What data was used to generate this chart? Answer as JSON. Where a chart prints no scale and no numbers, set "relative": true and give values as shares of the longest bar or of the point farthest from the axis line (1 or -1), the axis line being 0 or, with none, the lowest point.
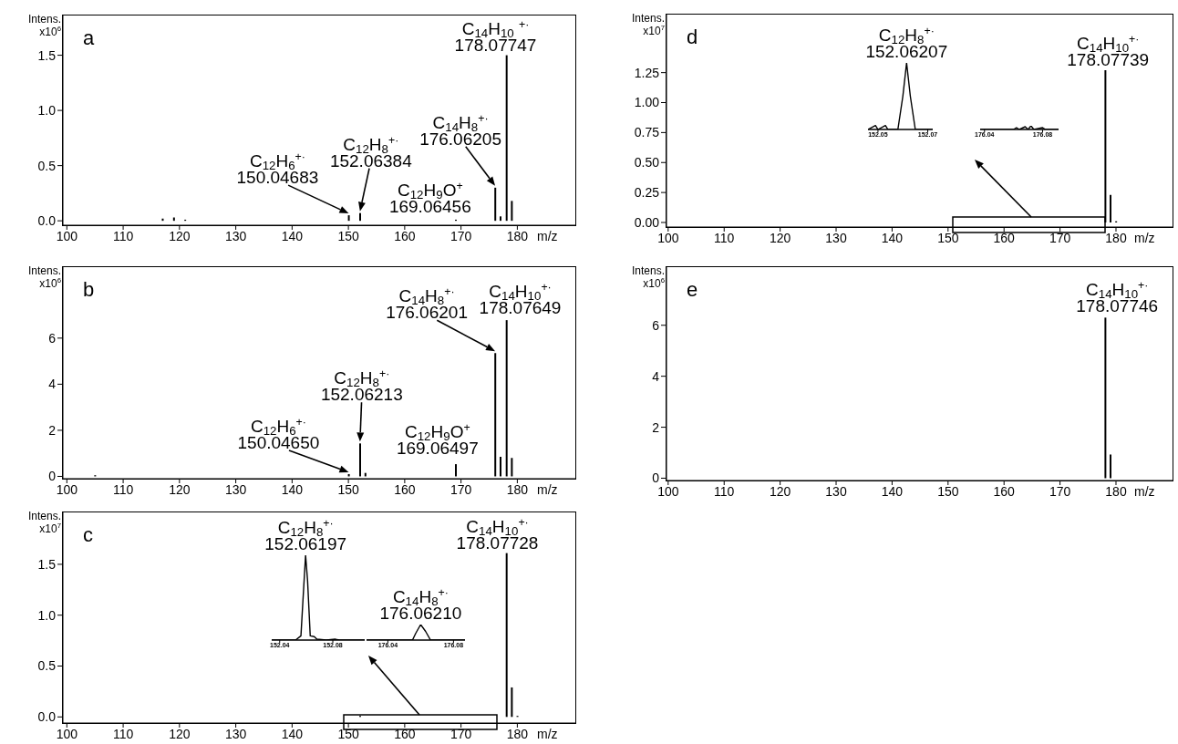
{
  "chart_data": [
    {
      "type": "bar",
      "title": "a",
      "ylabel": "Intens.\nx10$^{6}$",
      "xlabel": "m/z",
      "color": "#000000",
      "x": [
        117,
        119,
        121,
        150.05,
        152.06,
        169.06,
        176.06,
        177,
        178.08,
        179
      ],
      "values": [
        0.02,
        0.03,
        0.01,
        0.05,
        0.07,
        0.01,
        0.3,
        0.04,
        1.5,
        0.18
      ],
      "xlim": [
        99.3,
        190.3
      ],
      "xticks": [
        100,
        110,
        120,
        130,
        140,
        150,
        160,
        170,
        180
      ],
      "ylim": [
        -0.04,
        1.86
      ],
      "yticks": [
        {
          "value": 0,
          "label": "0.0"
        },
        {
          "value": 0.5,
          "label": "0.5"
        },
        {
          "value": 1,
          "label": "1.0"
        },
        {
          "value": 1.5,
          "label": "1.5"
        }
      ],
      "annotations": [
        {
          "text": "C$_{12}$H$_{6}$$^{+·}$\n150.04683",
          "x": 150.05,
          "y": 0.05
        },
        {
          "text": "C$_{12}$H$_{8}$$^{+·}$\n152.06384",
          "x": 152.06,
          "y": 0.07
        },
        {
          "text": "C$_{12}$H$_{9}$O$^{+}$\n169.06456",
          "x": 169.06,
          "y": 0.01
        },
        {
          "text": "C$_{14}$H$_{8}$$^{+·}$\n176.06205",
          "x": 176.06,
          "y": 0.3
        },
        {
          "text": "C$_{14}$H$_{10}$ $^{+·}$\n178.07747",
          "x": 178.08,
          "y": 1.5
        }
      ]
    },
    {
      "type": "bar",
      "title": "b",
      "ylabel": "Intens.\nx10$^{6}$",
      "xlabel": "m/z",
      "color": "#000000",
      "x": [
        105,
        150.05,
        152.06,
        153,
        169.06,
        176.06,
        177,
        178.08,
        179
      ],
      "values": [
        0.05,
        0.1,
        1.43,
        0.15,
        0.53,
        5.35,
        0.85,
        6.78,
        0.8
      ],
      "xlim": [
        99.3,
        190.3
      ],
      "xticks": [
        100,
        110,
        120,
        130,
        140,
        150,
        160,
        170,
        180
      ],
      "ylim": [
        -0.1,
        9.08
      ],
      "yticks": [
        0,
        2,
        4,
        6
      ],
      "annotations": [
        {
          "text": "C$_{12}$H$_{6}$$^{+·}$\n150.04650",
          "x": 150.05,
          "y": 0.1
        },
        {
          "text": "C$_{12}$H$_{8}$$^{+·}$\n152.06213",
          "x": 152.06,
          "y": 1.43
        },
        {
          "text": "C$_{12}$H$_{9}$O$^{+}$\n169.06497",
          "x": 169.06,
          "y": 0.53
        },
        {
          "text": "C$_{14}$H$_{8}$$^{+·}$\n176.06201",
          "x": 176.06,
          "y": 5.35
        },
        {
          "text": "C$_{14}$H$_{10}$$^{+·}$\n178.07649",
          "x": 178.08,
          "y": 6.78
        }
      ]
    },
    {
      "type": "bar",
      "title": "c",
      "ylabel": "Intens.\nx10$^{7}$",
      "xlabel": "m/z",
      "color": "#000000",
      "x": [
        152.06,
        178.08,
        179,
        180
      ],
      "values": [
        0.01,
        1.61,
        0.29,
        0.01
      ],
      "xlim": [
        99.3,
        190.3
      ],
      "xticks": [
        100,
        110,
        120,
        130,
        140,
        150,
        160,
        170,
        180
      ],
      "ylim": [
        -0.06,
        2.01
      ],
      "yticks": [
        {
          "value": 0,
          "label": "0.0"
        },
        {
          "value": 0.5,
          "label": "0.5"
        },
        {
          "value": 1,
          "label": "1.0"
        },
        {
          "value": 1.5,
          "label": "1.5"
        }
      ],
      "annotations": [
        {
          "text": "C$_{14}$H$_{10}$$^{+·}$\n178.07728",
          "x": 178.08,
          "y": 1.61
        }
      ]
    },
    {
      "type": "bar",
      "title": "d",
      "ylabel": "Intens.\nx10$^{7}$",
      "xlabel": "m/z",
      "color": "#000000",
      "x": [
        178.08,
        179,
        180
      ],
      "values": [
        1.27,
        0.23,
        0.01
      ],
      "xlim": [
        99.7,
        190.1
      ],
      "xticks": [
        100,
        110,
        120,
        130,
        140,
        150,
        160,
        170,
        180
      ],
      "ylim": [
        -0.038,
        1.734
      ],
      "yticks": [
        {
          "value": 0,
          "label": "0.00"
        },
        {
          "value": 0.25,
          "label": "0.25"
        },
        {
          "value": 0.5,
          "label": "0.50"
        },
        {
          "value": 0.75,
          "label": "0.75"
        },
        {
          "value": 1,
          "label": "1.00"
        },
        {
          "value": 1.25,
          "label": "1.25"
        }
      ],
      "annotations": [
        {
          "text": "C$_{14}$H$_{10}$$^{+·}$\n178.07739",
          "x": 178.08,
          "y": 1.27
        }
      ]
    },
    {
      "type": "bar",
      "title": "e",
      "ylabel": "Intens.\nx10$^{6}$",
      "xlabel": "m/z",
      "color": "#000000",
      "x": [
        178.08,
        179
      ],
      "values": [
        6.3,
        0.93
      ],
      "xlim": [
        99.7,
        190.1
      ],
      "xticks": [
        100,
        110,
        120,
        130,
        140,
        150,
        160,
        170,
        180
      ],
      "ylim": [
        -0.09,
        8.28
      ],
      "yticks": [
        0,
        2,
        4,
        6
      ],
      "annotations": [
        {
          "text": "C$_{14}$H$_{10}$$^{+·}$\n178.07746",
          "x": 178.08,
          "y": 6.3
        }
      ]
    },
    {
      "type": "line",
      "relative": true,
      "color": "#000000",
      "x": [
        152.034,
        152.052,
        152.056,
        152.058,
        152.0595,
        152.061,
        152.063,
        152.066,
        152.068,
        152.075,
        152.082,
        152.085,
        152.104
      ],
      "values": [
        0,
        0,
        0.05,
        0.6,
        1,
        0.7,
        0.05,
        0.04,
        0.01,
        0,
        0.01,
        0,
        0
      ],
      "xlim": [
        152.034,
        152.104
      ],
      "xticks": [
        152.04,
        152.08
      ],
      "annotations": [
        {
          "text": "C$_{12}$H$_{8}$$^{+·}$\n152.06197",
          "x": 152.0595,
          "y": 1
        }
      ]
    },
    {
      "type": "line",
      "relative": true,
      "color": "#000000",
      "x": [
        176.027,
        176.055,
        176.057,
        176.06,
        176.063,
        176.066,
        176.087
      ],
      "values": [
        0,
        0,
        0.44,
        1,
        0.56,
        0,
        0
      ],
      "xlim": [
        176.027,
        176.087
      ],
      "xticks": [
        176.04,
        176.08
      ],
      "annotations": [
        {
          "text": "C$_{14}$H$_{8}$$^{+·}$\n176.06210",
          "x": 176.06,
          "y": 1
        }
      ]
    },
    {
      "type": "line",
      "relative": true,
      "color": "#000000",
      "x": [
        152.046,
        152.049,
        152.05,
        152.053,
        152.054,
        152.058,
        152.06,
        152.0615,
        152.063,
        152.065,
        152.072
      ],
      "values": [
        0,
        0.06,
        0,
        0.06,
        0,
        0,
        0.5,
        1,
        0.5,
        0,
        0
      ],
      "xlim": [
        152.046,
        152.072
      ],
      "xticks": [
        152.05,
        152.07
      ],
      "annotations": [
        {
          "text": "C$_{12}$H$_{8}$$^{+·}$\n152.06207",
          "x": 152.0615,
          "y": 1
        }
      ]
    },
    {
      "type": "line",
      "relative": true,
      "color": "#000000",
      "x": [
        176.037,
        176.06,
        176.062,
        176.064,
        176.068,
        176.07,
        176.072,
        176.074,
        176.08,
        176.082,
        176.091
      ],
      "values": [
        0,
        0,
        0.5,
        0,
        0.75,
        0,
        1,
        0,
        0.5,
        0,
        0
      ],
      "xlim": [
        176.037,
        176.091
      ],
      "xticks": [
        176.04,
        176.08
      ]
    }
  ]
}
